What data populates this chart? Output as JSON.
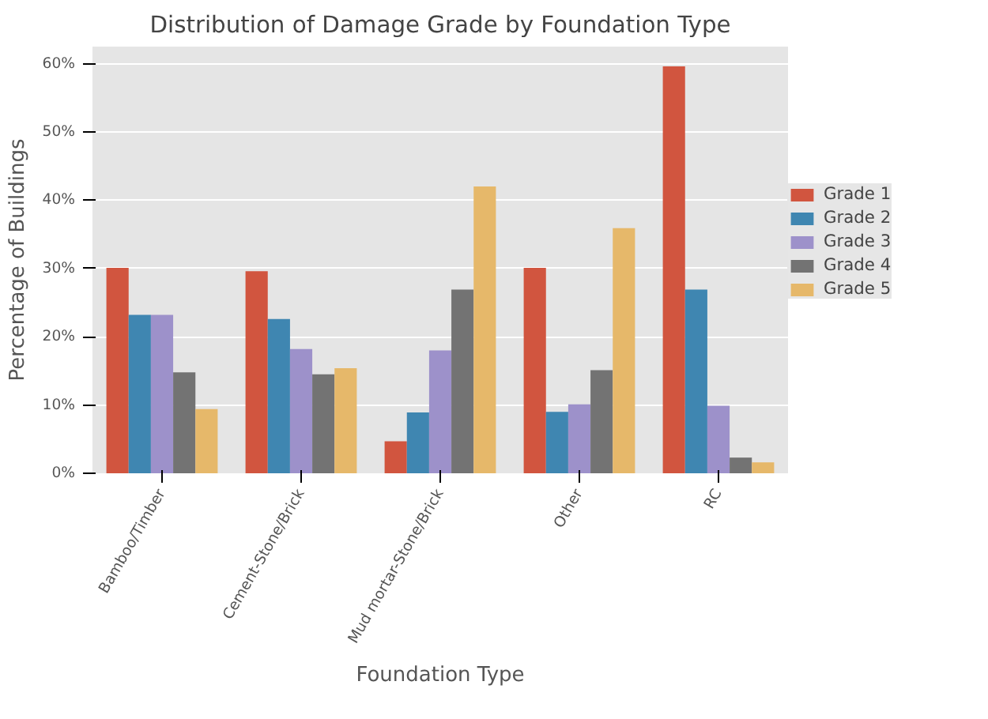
{
  "chart_data": {
    "type": "bar",
    "title": "Distribution of Damage Grade by Foundation Type",
    "xlabel": "Foundation Type",
    "ylabel": "Percentage of Buildings",
    "categories": [
      "Bamboo/Timber",
      "Cement-Stone/Brick",
      "Mud mortar-Stone/Brick",
      "Other",
      "RC"
    ],
    "series": [
      {
        "name": "Grade 1",
        "color": "#d1553f",
        "values": [
          30.1,
          29.6,
          4.7,
          30.1,
          59.6
        ]
      },
      {
        "name": "Grade 2",
        "color": "#3f86b1",
        "values": [
          23.2,
          22.6,
          8.9,
          9.0,
          26.9
        ]
      },
      {
        "name": "Grade 3",
        "color": "#9d91ca",
        "values": [
          23.2,
          18.2,
          18.0,
          10.1,
          9.9
        ]
      },
      {
        "name": "Grade 4",
        "color": "#737373",
        "values": [
          14.8,
          14.5,
          26.9,
          15.1,
          2.3
        ]
      },
      {
        "name": "Grade 5",
        "color": "#e6b86a",
        "values": [
          9.4,
          15.4,
          42.0,
          35.9,
          1.6
        ]
      }
    ],
    "ylim": [
      0,
      62.5
    ],
    "yticks": [
      {
        "value": 0,
        "label": "0%"
      },
      {
        "value": 10,
        "label": "10%"
      },
      {
        "value": 20,
        "label": "20%"
      },
      {
        "value": 30,
        "label": "30%"
      },
      {
        "value": 40,
        "label": "40%"
      },
      {
        "value": 50,
        "label": "50%"
      },
      {
        "value": 60,
        "label": "60%"
      }
    ],
    "grid": true,
    "legend": "right"
  }
}
